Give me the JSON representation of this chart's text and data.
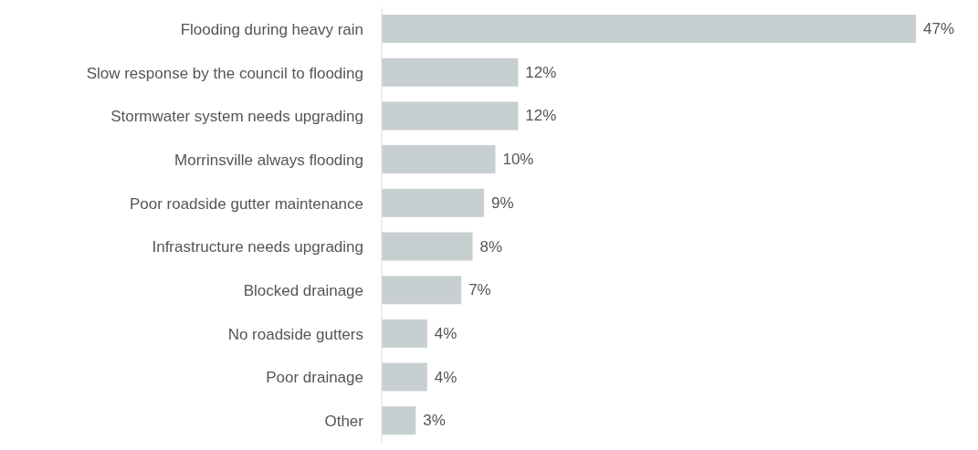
{
  "chart_data": {
    "type": "bar",
    "orientation": "horizontal",
    "categories": [
      "Flooding during heavy rain",
      "Slow response by the council to flooding",
      "Stormwater system needs upgrading",
      "Morrinsville always flooding",
      "Poor roadside gutter maintenance",
      "Infrastructure needs upgrading",
      "Blocked drainage",
      "No roadside gutters",
      "Poor drainage",
      "Other"
    ],
    "values": [
      47,
      12,
      12,
      10,
      9,
      8,
      7,
      4,
      4,
      3
    ],
    "value_labels": [
      "47%",
      "12%",
      "12%",
      "10%",
      "9%",
      "8%",
      "7%",
      "4%",
      "4%",
      "3%"
    ],
    "color": "#c8cfd1"
  }
}
